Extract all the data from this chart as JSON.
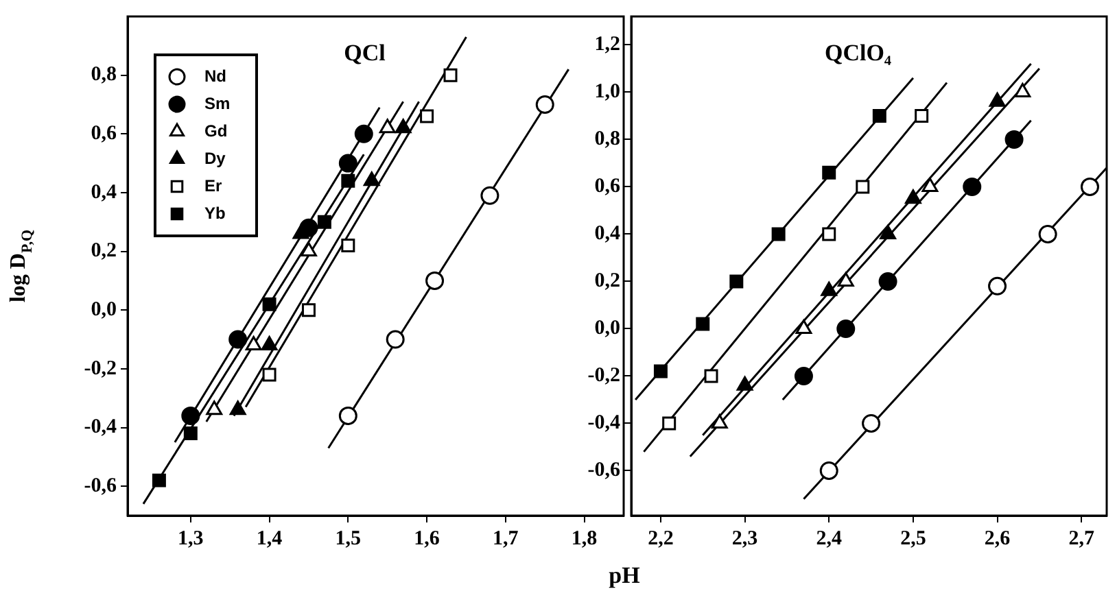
{
  "chart_data": [
    {
      "type": "scatter",
      "title": "QCl",
      "ylabel": "log D$_{P,Q}$",
      "xlim": [
        1.22,
        1.85
      ],
      "ylim": [
        -0.7,
        1.0
      ],
      "xticks": [
        {
          "value": 1.3,
          "label": "1,3"
        },
        {
          "value": 1.4,
          "label": "1,4"
        },
        {
          "value": 1.5,
          "label": "1,5"
        },
        {
          "value": 1.6,
          "label": "1,6"
        },
        {
          "value": 1.7,
          "label": "1,7"
        },
        {
          "value": 1.8,
          "label": "1,8"
        }
      ],
      "yticks": [
        {
          "value": -0.6,
          "label": "-0,6"
        },
        {
          "value": -0.4,
          "label": "-0,4"
        },
        {
          "value": -0.2,
          "label": "-0,2"
        },
        {
          "value": 0,
          "label": "0,0"
        },
        {
          "value": 0.2,
          "label": "0,2"
        },
        {
          "value": 0.4,
          "label": "0,4"
        },
        {
          "value": 0.6,
          "label": "0,6"
        },
        {
          "value": 0.8,
          "label": "0,8"
        }
      ],
      "grid": false,
      "legend": "top left",
      "series": [
        {
          "name": "Nd",
          "marker": "circle",
          "color": "#000000",
          "x": [
            1.5,
            1.56,
            1.61,
            1.68,
            1.75
          ],
          "values": [
            -0.36,
            -0.1,
            0.1,
            0.39,
            0.7
          ]
        },
        {
          "name": "Sm",
          "marker": "circle",
          "color": "#000000",
          "x": [
            1.3,
            1.36,
            1.45,
            1.5,
            1.52
          ],
          "values": [
            -0.36,
            -0.1,
            0.28,
            0.5,
            0.6
          ]
        },
        {
          "name": "Gd",
          "marker": "triangle",
          "color": "#000000",
          "x": [
            1.33,
            1.38,
            1.45,
            1.55
          ],
          "values": [
            -0.34,
            -0.12,
            0.2,
            0.62
          ]
        },
        {
          "name": "Dy",
          "marker": "triangle",
          "color": "#000000",
          "x": [
            1.36,
            1.4,
            1.44,
            1.53,
            1.57
          ],
          "values": [
            -0.34,
            -0.12,
            0.26,
            0.44,
            0.62
          ]
        },
        {
          "name": "Er",
          "marker": "square",
          "color": "#000000",
          "x": [
            1.4,
            1.45,
            1.5,
            1.6,
            1.63
          ],
          "values": [
            -0.22,
            0.0,
            0.22,
            0.66,
            0.8
          ]
        },
        {
          "name": "Yb",
          "marker": "square",
          "color": "#000000",
          "x": [
            1.26,
            1.3,
            1.4,
            1.47,
            1.5
          ],
          "values": [
            -0.58,
            -0.42,
            0.02,
            0.3,
            0.44
          ]
        },
        {
          "type": "line",
          "color": "#000000",
          "x": [
            1.475,
            1.78
          ],
          "values": [
            -0.47,
            0.82
          ]
        },
        {
          "type": "line",
          "color": "#000000",
          "x": [
            1.28,
            1.54
          ],
          "values": [
            -0.45,
            0.69
          ]
        },
        {
          "type": "line",
          "color": "#000000",
          "x": [
            1.32,
            1.57
          ],
          "values": [
            -0.38,
            0.71
          ]
        },
        {
          "type": "line",
          "color": "#000000",
          "x": [
            1.355,
            1.59
          ],
          "values": [
            -0.36,
            0.71
          ]
        },
        {
          "type": "line",
          "color": "#000000",
          "x": [
            1.37,
            1.65
          ],
          "values": [
            -0.33,
            0.93
          ]
        },
        {
          "type": "line",
          "color": "#000000",
          "x": [
            1.24,
            1.52
          ],
          "values": [
            -0.66,
            0.53
          ]
        }
      ]
    },
    {
      "type": "scatter",
      "title": "QClO₄",
      "xlabel": "pH",
      "xlim": [
        2.165,
        2.73
      ],
      "ylim": [
        -0.79,
        1.32
      ],
      "xticks": [
        {
          "value": 2.2,
          "label": "2,2"
        },
        {
          "value": 2.3,
          "label": "2,3"
        },
        {
          "value": 2.4,
          "label": "2,4"
        },
        {
          "value": 2.5,
          "label": "2,5"
        },
        {
          "value": 2.6,
          "label": "2,6"
        },
        {
          "value": 2.7,
          "label": "2,7"
        }
      ],
      "yticks": [
        {
          "value": -0.6,
          "label": "-0,6"
        },
        {
          "value": -0.4,
          "label": "-0,4"
        },
        {
          "value": -0.2,
          "label": "-0,2"
        },
        {
          "value": 0,
          "label": "0,0"
        },
        {
          "value": 0.2,
          "label": "0,2"
        },
        {
          "value": 0.4,
          "label": "0,4"
        },
        {
          "value": 0.6,
          "label": "0,6"
        },
        {
          "value": 0.8,
          "label": "0,8"
        },
        {
          "value": 1.0,
          "label": "1,0"
        },
        {
          "value": 1.2,
          "label": "1,2"
        }
      ],
      "grid": false,
      "series": [
        {
          "marker": "circle",
          "color": "#000000",
          "x": [
            2.4,
            2.45,
            2.6,
            2.66,
            2.71
          ],
          "values": [
            -0.6,
            -0.4,
            0.18,
            0.4,
            0.6
          ]
        },
        {
          "marker": "circle",
          "color": "#000000",
          "x": [
            2.37,
            2.42,
            2.47,
            2.57,
            2.62
          ],
          "values": [
            -0.2,
            0.0,
            0.2,
            0.6,
            0.8
          ]
        },
        {
          "marker": "triangle",
          "color": "#000000",
          "x": [
            2.27,
            2.37,
            2.42,
            2.52,
            2.63
          ],
          "values": [
            -0.4,
            0.0,
            0.2,
            0.6,
            1.0
          ]
        },
        {
          "marker": "triangle",
          "color": "#000000",
          "x": [
            2.3,
            2.4,
            2.47,
            2.5,
            2.6
          ],
          "values": [
            -0.24,
            0.16,
            0.4,
            0.55,
            0.96
          ]
        },
        {
          "marker": "square",
          "color": "#000000",
          "x": [
            2.21,
            2.26,
            2.4,
            2.44,
            2.51
          ],
          "values": [
            -0.4,
            -0.2,
            0.4,
            0.6,
            0.9
          ]
        },
        {
          "marker": "square",
          "color": "#000000",
          "x": [
            2.2,
            2.25,
            2.29,
            2.34,
            2.4,
            2.46
          ],
          "values": [
            -0.18,
            0.02,
            0.2,
            0.4,
            0.66,
            0.9
          ]
        },
        {
          "type": "line",
          "color": "#000000",
          "x": [
            2.37,
            2.73
          ],
          "values": [
            -0.72,
            0.68
          ]
        },
        {
          "type": "line",
          "color": "#000000",
          "x": [
            2.345,
            2.64
          ],
          "values": [
            -0.3,
            0.88
          ]
        },
        {
          "type": "line",
          "color": "#000000",
          "x": [
            2.235,
            2.65
          ],
          "values": [
            -0.54,
            1.1
          ]
        },
        {
          "type": "line",
          "color": "#000000",
          "x": [
            2.25,
            2.64
          ],
          "values": [
            -0.45,
            1.12
          ]
        },
        {
          "type": "line",
          "color": "#000000",
          "x": [
            2.18,
            2.54
          ],
          "values": [
            -0.52,
            1.04
          ]
        },
        {
          "type": "line",
          "color": "#000000",
          "x": [
            2.17,
            2.5
          ],
          "values": [
            -0.3,
            1.06
          ]
        }
      ]
    }
  ]
}
